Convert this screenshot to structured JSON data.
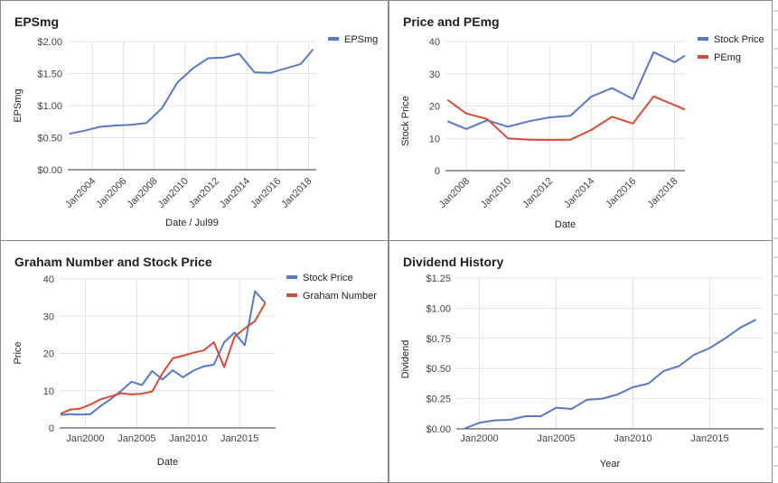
{
  "chart_data": [
    {
      "type": "line",
      "title": "EPSmg",
      "xlabel": "Date / Jul99",
      "ylabel": "EPSmg",
      "x_ticks": [
        "Jan2004",
        "Jan2006",
        "Jan2008",
        "Jan2010",
        "Jan2012",
        "Jan2014",
        "Jan2016",
        "Jan2018"
      ],
      "y_ticks": [
        "$0.00",
        "$0.50",
        "$1.00",
        "$1.50",
        "$2.00"
      ],
      "xlim": [
        2002.4,
        2018.5
      ],
      "ylim": [
        0,
        2
      ],
      "grid": true,
      "legend_position": "right",
      "series": [
        {
          "name": "EPSmg",
          "color": "#5779c7",
          "x": [
            2002.5,
            2003.5,
            2004.5,
            2005.5,
            2006.5,
            2007.5,
            2008.5,
            2009.5,
            2010.5,
            2011.5,
            2012.5,
            2013.5,
            2014.5,
            2015.5,
            2016.5,
            2017.5,
            2018.3
          ],
          "y": [
            0.56,
            0.61,
            0.67,
            0.69,
            0.7,
            0.73,
            0.96,
            1.36,
            1.58,
            1.74,
            1.75,
            1.81,
            1.52,
            1.51,
            1.58,
            1.65,
            1.88
          ]
        }
      ]
    },
    {
      "type": "line",
      "title": "Price and PEmg",
      "xlabel": "Date",
      "ylabel": "Stock Price",
      "x_ticks": [
        "Jan2008",
        "Jan2010",
        "Jan2012",
        "Jan2014",
        "Jan2016",
        "Jan2018"
      ],
      "y_ticks": [
        "0",
        "10",
        "20",
        "30",
        "40"
      ],
      "xlim": [
        2007.0,
        2018.5
      ],
      "ylim": [
        0,
        40
      ],
      "grid": true,
      "legend_position": "right",
      "series": [
        {
          "name": "Stock Price",
          "color": "#5779c7",
          "x": [
            2007.1,
            2008.0,
            2009.0,
            2010.0,
            2011.0,
            2012.0,
            2013.0,
            2014.0,
            2015.0,
            2016.0,
            2017.0,
            2018.0,
            2018.5
          ],
          "y": [
            15.3,
            12.9,
            15.6,
            13.6,
            15.3,
            16.5,
            17.0,
            22.9,
            25.6,
            22.2,
            36.7,
            33.6,
            35.6
          ]
        },
        {
          "name": "PEmg",
          "color": "#d94b33",
          "x": [
            2007.1,
            2008.0,
            2009.0,
            2010.0,
            2011.0,
            2012.0,
            2013.0,
            2014.0,
            2015.0,
            2016.0,
            2017.0,
            2018.0,
            2018.5
          ],
          "y": [
            21.9,
            17.7,
            16.0,
            10.0,
            9.6,
            9.5,
            9.6,
            12.6,
            16.7,
            14.6,
            23.0,
            20.3,
            18.9
          ]
        }
      ]
    },
    {
      "type": "line",
      "title": "Graham Number and Stock Price",
      "xlabel": "Date",
      "ylabel": "Price",
      "x_ticks": [
        "Jan2000",
        "Jan2005",
        "Jan2010",
        "Jan2015"
      ],
      "y_ticks": [
        "0",
        "10",
        "20",
        "30",
        "40"
      ],
      "xlim": [
        1997.5,
        2018.5
      ],
      "ylim": [
        0,
        40
      ],
      "grid": true,
      "legend_position": "right",
      "series": [
        {
          "name": "Stock Price",
          "color": "#5779c7",
          "x": [
            1997.6,
            1998.5,
            1999.5,
            2000.5,
            2001.5,
            2002.5,
            2003.5,
            2004.5,
            2005.5,
            2006.5,
            2007.5,
            2008.5,
            2009.5,
            2010.5,
            2011.5,
            2012.5,
            2013.5,
            2014.5,
            2015.5,
            2016.5,
            2017.5
          ],
          "y": [
            3.5,
            3.7,
            3.6,
            3.7,
            5.9,
            7.8,
            10.0,
            12.4,
            11.5,
            15.3,
            13.0,
            15.5,
            13.6,
            15.4,
            16.5,
            17.0,
            23.0,
            25.6,
            22.2,
            36.7,
            33.6
          ]
        },
        {
          "name": "Graham Number",
          "color": "#d94b33",
          "x": [
            1997.6,
            1998.5,
            1999.5,
            2000.5,
            2001.5,
            2002.5,
            2003.5,
            2004.5,
            2005.5,
            2006.5,
            2007.5,
            2008.5,
            2009.5,
            2010.5,
            2011.5,
            2012.5,
            2013.5,
            2014.5,
            2015.5,
            2016.5,
            2017.5
          ],
          "y": [
            3.8,
            4.9,
            5.2,
            6.3,
            7.7,
            8.5,
            9.3,
            9.0,
            9.2,
            9.8,
            14.7,
            18.7,
            19.4,
            20.2,
            20.8,
            23.0,
            16.3,
            24.5,
            26.7,
            28.7,
            33.6
          ]
        }
      ]
    },
    {
      "type": "line",
      "title": "Dividend History",
      "xlabel": "Year",
      "ylabel": "Dividend",
      "x_ticks": [
        "Jan2000",
        "Jan2005",
        "Jan2010",
        "Jan2015"
      ],
      "y_ticks": [
        "$0.00",
        "$0.25",
        "$0.50",
        "$0.75",
        "$1.00",
        "$1.25"
      ],
      "xlim": [
        1998.5,
        2018.5
      ],
      "ylim": [
        0,
        1.25
      ],
      "grid": true,
      "series": [
        {
          "name": "",
          "color": "#5779c7",
          "x": [
            1999.0,
            2000.0,
            2001.0,
            2002.0,
            2003.0,
            2004.0,
            2005.0,
            2006.0,
            2007.0,
            2008.0,
            2009.0,
            2010.0,
            2011.0,
            2012.0,
            2013.0,
            2014.0,
            2015.0,
            2016.0,
            2017.0,
            2018.0
          ],
          "y": [
            0.0,
            0.05,
            0.07,
            0.075,
            0.105,
            0.105,
            0.175,
            0.165,
            0.24,
            0.25,
            0.285,
            0.345,
            0.375,
            0.48,
            0.52,
            0.615,
            0.67,
            0.75,
            0.84,
            0.905
          ]
        }
      ]
    }
  ]
}
